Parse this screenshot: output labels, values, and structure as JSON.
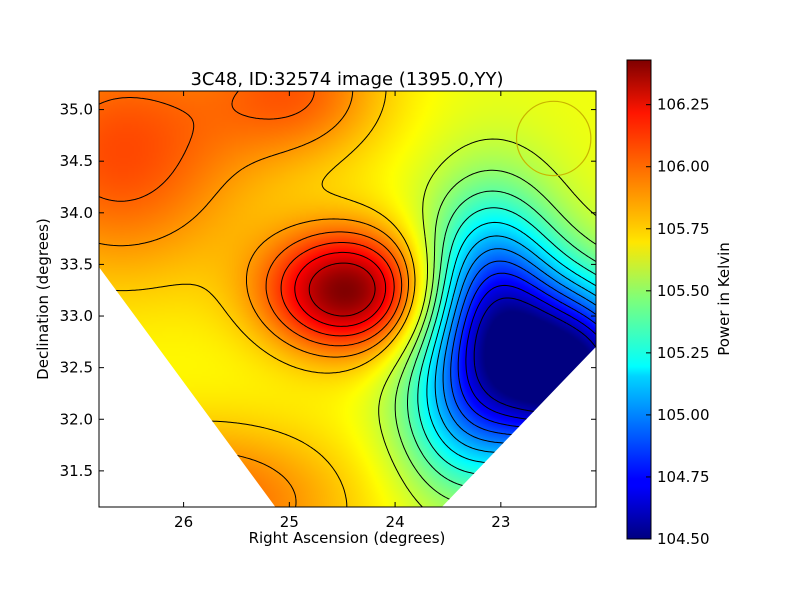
{
  "chart_data": {
    "type": "heatmap",
    "title": "3C48, ID:32574 image (1395.0,YY)",
    "xlabel": "Right Ascension (degrees)",
    "ylabel": "Declination (degrees)",
    "colorbar_label": "Power in Kelvin",
    "xlim": [
      26.8,
      22.1
    ],
    "ylim": [
      31.15,
      35.18
    ],
    "x_ticks": [
      {
        "value": 26,
        "label": "26"
      },
      {
        "value": 25,
        "label": "25"
      },
      {
        "value": 24,
        "label": "24"
      },
      {
        "value": 23,
        "label": "23"
      }
    ],
    "y_ticks": [
      {
        "value": 31.5,
        "label": "31.5"
      },
      {
        "value": 32.0,
        "label": "32.0"
      },
      {
        "value": 32.5,
        "label": "32.5"
      },
      {
        "value": 33.0,
        "label": "33.0"
      },
      {
        "value": 33.5,
        "label": "33.5"
      },
      {
        "value": 34.0,
        "label": "34.0"
      },
      {
        "value": 34.5,
        "label": "34.5"
      },
      {
        "value": 35.0,
        "label": "35.0"
      }
    ],
    "colorbar_range": [
      104.5,
      106.43
    ],
    "colorbar_ticks": [
      {
        "value": 104.5,
        "label": "104.50"
      },
      {
        "value": 104.75,
        "label": "104.75"
      },
      {
        "value": 105.0,
        "label": "105.00"
      },
      {
        "value": 105.25,
        "label": "105.25"
      },
      {
        "value": 105.5,
        "label": "105.50"
      },
      {
        "value": 105.75,
        "label": "105.75"
      },
      {
        "value": 106.0,
        "label": "106.00"
      },
      {
        "value": 106.25,
        "label": "106.25"
      }
    ],
    "colormap": "jet",
    "background_level": 105.68,
    "features": [
      {
        "kind": "peak",
        "ra": 24.45,
        "dec": 33.25,
        "value": 106.43,
        "sigma_ra": 0.55,
        "sigma_dec": 0.42
      },
      {
        "kind": "peak",
        "ra": 26.6,
        "dec": 34.6,
        "value": 106.05,
        "sigma_ra": 0.9,
        "sigma_dec": 0.9
      },
      {
        "kind": "peak",
        "ra": 24.9,
        "dec": 35.2,
        "value": 105.97,
        "sigma_ra": 0.6,
        "sigma_dec": 0.5
      },
      {
        "kind": "peak",
        "ra": 25.8,
        "dec": 31.2,
        "value": 106.0,
        "sigma_ra": 1.0,
        "sigma_dec": 0.55
      },
      {
        "kind": "trough",
        "ra": 22.3,
        "dec": 32.45,
        "value": 104.5,
        "sigma_ra": 0.55,
        "sigma_dec": 0.6
      },
      {
        "kind": "trough",
        "ra": 23.1,
        "dec": 33.1,
        "value": 104.85,
        "sigma_ra": 0.45,
        "sigma_dec": 0.75
      },
      {
        "kind": "trough",
        "ra": 23.4,
        "dec": 32.0,
        "value": 105.3,
        "sigma_ra": 0.45,
        "sigma_dec": 0.6
      }
    ],
    "contour_levels": [
      104.6,
      104.7,
      104.8,
      104.9,
      105.0,
      105.1,
      105.2,
      105.3,
      105.4,
      105.5,
      105.6,
      105.8,
      105.9,
      106.0,
      106.1,
      106.2,
      106.3
    ],
    "beam_marker": {
      "ra": 22.5,
      "dec": 34.72,
      "radius_deg": 0.36,
      "color": "#c8b400"
    },
    "map_footprint_corners": [
      {
        "ra": 24.45,
        "dec": 37.6
      },
      {
        "ra": 27.5,
        "dec": 34.45
      },
      {
        "ra": 24.45,
        "dec": 30.2
      },
      {
        "ra": 20.6,
        "dec": 34.3
      }
    ],
    "grid": false,
    "colorbar_position": "right"
  }
}
